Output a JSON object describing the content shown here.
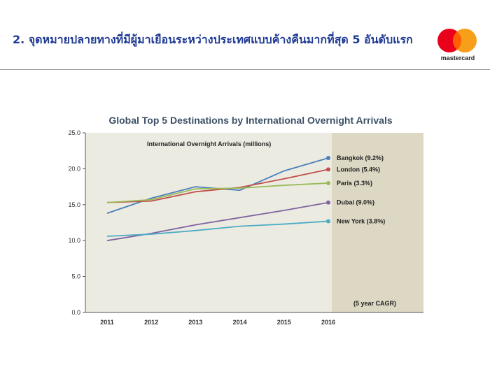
{
  "slide": {
    "title": "2. จุดหมายปลายทางที่มีผู้มาเยือนระหว่างประเทศแบบค้างคืนมากที่สุด 5 อันดับแรก",
    "brand": "mastercard",
    "brand_colors": {
      "red": "#eb001b",
      "orange": "#f79e1b",
      "overlap": "#ff5f00"
    }
  },
  "chart_data": {
    "type": "line",
    "title": "Global Top 5 Destinations by International Overnight Arrivals",
    "annotation": "International Overnight Arrivals (millions)",
    "forecast_note": "(5 year CAGR)",
    "x": [
      "2011",
      "2012",
      "2013",
      "2014",
      "2015",
      "2016"
    ],
    "yticks": [
      "0.0",
      "5.0",
      "10.0",
      "15.0",
      "20.0",
      "25.0"
    ],
    "ylim": [
      0,
      25
    ],
    "grid": false,
    "background": "#ecebe1",
    "shaded_region_color": "#dcd8c4",
    "series": [
      {
        "name": "Bangkok (9.2%)",
        "color": "#4a7fbd",
        "values": [
          13.8,
          15.9,
          17.5,
          17.0,
          19.7,
          21.5
        ]
      },
      {
        "name": "London (5.4%)",
        "color": "#c0504d",
        "values": [
          15.3,
          15.5,
          16.8,
          17.4,
          18.6,
          19.9
        ]
      },
      {
        "name": "Paris (3.3%)",
        "color": "#9bbb59",
        "values": [
          15.3,
          15.7,
          17.2,
          17.3,
          17.7,
          18.0
        ]
      },
      {
        "name": "Dubai (9.0%)",
        "color": "#8064a2",
        "values": [
          10.0,
          11.0,
          12.2,
          13.2,
          14.2,
          15.3
        ]
      },
      {
        "name": "New York (3.8%)",
        "color": "#4bacc6",
        "values": [
          10.6,
          10.9,
          11.4,
          12.0,
          12.3,
          12.7
        ]
      }
    ]
  }
}
